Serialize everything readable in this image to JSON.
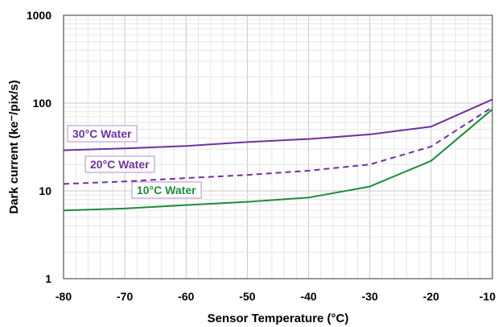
{
  "chart_data": {
    "type": "line",
    "xlabel": "Sensor Temperature (°C)",
    "ylabel": "Dark current (ke⁻/pix/s)",
    "xlim": [
      -80,
      -10
    ],
    "ylim": [
      1,
      1000
    ],
    "y_scale": "log",
    "grid": true,
    "x_ticks": [
      "-80",
      "-70",
      "-60",
      "-50",
      "-40",
      "-30",
      "-20",
      "-10"
    ],
    "y_ticks": [
      "1",
      "10",
      "100",
      "1000"
    ],
    "series": [
      {
        "name": "30°C Water",
        "color": "#7030a0",
        "dash": "solid",
        "x": [
          -80,
          -70,
          -60,
          -50,
          -40,
          -30,
          -20,
          -10
        ],
        "y": [
          29,
          30.5,
          32.5,
          36,
          39,
          44,
          54,
          110
        ]
      },
      {
        "name": "20°C Water",
        "color": "#7030a0",
        "dash": "dashed",
        "x": [
          -80,
          -70,
          -60,
          -50,
          -40,
          -30,
          -20,
          -10
        ],
        "y": [
          12,
          12.8,
          14,
          15.2,
          17,
          20,
          32,
          90
        ]
      },
      {
        "name": "10°C Water",
        "color": "#1e8c3c",
        "dash": "solid",
        "x": [
          -80,
          -70,
          -60,
          -50,
          -40,
          -30,
          -20,
          -10
        ],
        "y": [
          6,
          6.3,
          6.9,
          7.5,
          8.4,
          11.2,
          22,
          85
        ]
      }
    ]
  }
}
